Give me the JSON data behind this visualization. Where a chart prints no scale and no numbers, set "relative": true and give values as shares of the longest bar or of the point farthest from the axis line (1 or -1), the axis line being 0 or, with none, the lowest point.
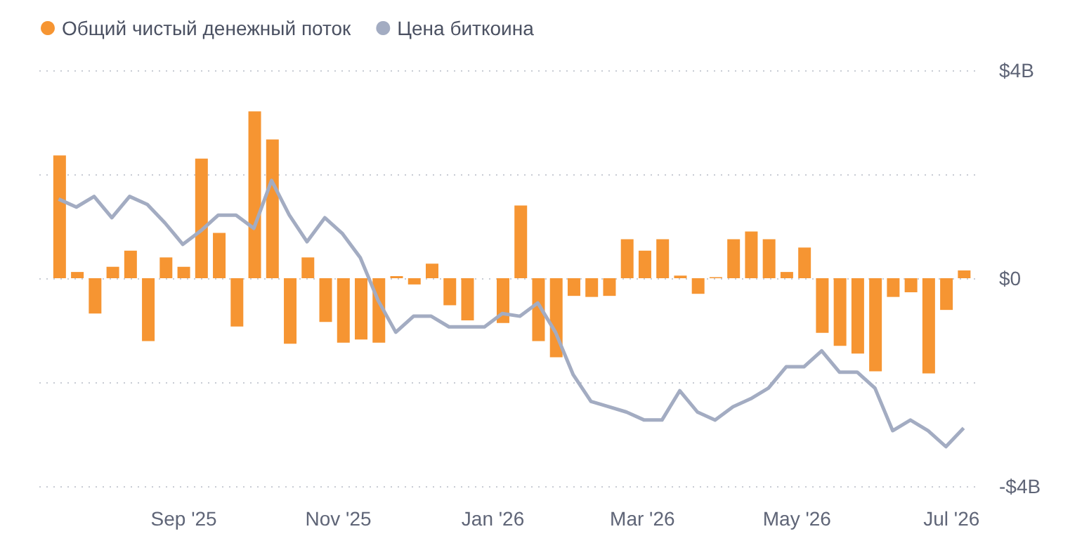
{
  "chart_data": [
    {
      "type": "bar",
      "x": [
        "2025-07-14",
        "2025-07-21",
        "2025-07-28",
        "2025-08-04",
        "2025-08-11",
        "2025-08-18",
        "2025-08-25",
        "2025-09-01",
        "2025-09-08",
        "2025-09-15",
        "2025-09-22",
        "2025-09-29",
        "2025-10-06",
        "2025-10-13",
        "2025-10-20",
        "2025-10-27",
        "2025-11-03",
        "2025-11-10",
        "2025-11-17",
        "2025-11-24",
        "2025-12-01",
        "2025-12-08",
        "2025-12-15",
        "2025-12-22",
        "2025-12-29",
        "2026-01-05",
        "2026-01-12",
        "2026-01-19",
        "2026-01-26",
        "2026-02-02",
        "2026-02-09",
        "2026-02-16",
        "2026-02-23",
        "2026-03-02",
        "2026-03-09",
        "2026-03-16",
        "2026-03-23",
        "2026-03-30",
        "2026-04-06",
        "2026-04-13",
        "2026-04-20",
        "2026-04-27",
        "2026-05-04",
        "2026-05-11",
        "2026-05-18",
        "2026-05-25",
        "2026-06-01",
        "2026-06-08",
        "2026-06-15",
        "2026-06-22",
        "2026-06-29",
        "2026-07-06"
      ],
      "series": [
        {
          "name": "Общий чистый денежный поток",
          "color": "#f69532",
          "values": [
            2.36,
            0.12,
            -0.68,
            0.22,
            0.53,
            -1.21,
            0.4,
            0.22,
            2.3,
            0.87,
            -0.93,
            3.21,
            2.67,
            -1.26,
            0.4,
            -0.84,
            -1.24,
            -1.18,
            -1.24,
            0.04,
            -0.12,
            0.28,
            -0.52,
            -0.81,
            0,
            -0.86,
            1.4,
            -1.21,
            -1.52,
            -0.34,
            -0.36,
            -0.34,
            0.75,
            0.53,
            0.75,
            0.05,
            -0.3,
            0.02,
            0.75,
            0.9,
            0.75,
            0.12,
            0.59,
            -1.05,
            -1.3,
            -1.45,
            -1.79,
            -0.36,
            -0.27,
            -1.83,
            -0.61,
            0.15
          ]
        }
      ],
      "xlim": [
        "2025-07-06",
        "2026-07-12"
      ],
      "xticks": [
        {
          "value": "2025-09-01",
          "label": "Sep '25"
        },
        {
          "value": "2025-11-01",
          "label": "Nov '25"
        },
        {
          "value": "2026-01-01",
          "label": "Jan '26"
        },
        {
          "value": "2026-03-01",
          "label": "Mar '26"
        },
        {
          "value": "2026-05-01",
          "label": "May '26"
        },
        {
          "value": "2026-07-01",
          "label": "Jul '26"
        }
      ],
      "ylim": [
        -4,
        4
      ],
      "yticks": [
        {
          "value": -4,
          "label": "-$4B"
        },
        {
          "value": -2,
          "label": null
        },
        {
          "value": 0,
          "label": "$0"
        },
        {
          "value": 2,
          "label": null
        },
        {
          "value": 4,
          "label": "$4B"
        }
      ],
      "grid": "y",
      "legend": "top left"
    },
    {
      "type": "line",
      "relative": true,
      "marker": "none",
      "categories": [
        null,
        null,
        null,
        null,
        null,
        null,
        null,
        null,
        null,
        null,
        null,
        null,
        null,
        null,
        null,
        null,
        null,
        null,
        null,
        null,
        null,
        null,
        null,
        null,
        null,
        null,
        null,
        null,
        null,
        null,
        null,
        null,
        null,
        null,
        null,
        null,
        null,
        null,
        null,
        null,
        null,
        null,
        null,
        null,
        null,
        null,
        null,
        null,
        null,
        null,
        null,
        null
      ],
      "series": [
        {
          "name": "Цена биткоина",
          "color": "#a3acc2",
          "values": [
            0.93,
            0.9,
            0.94,
            0.86,
            0.94,
            0.91,
            0.84,
            0.76,
            0.81,
            0.87,
            0.87,
            0.82,
            1,
            0.87,
            0.77,
            0.86,
            0.8,
            0.71,
            0.55,
            0.43,
            0.49,
            0.49,
            0.45,
            0.45,
            0.45,
            0.5,
            0.49,
            0.54,
            0.43,
            0.27,
            0.17,
            0.15,
            0.13,
            0.1,
            0.1,
            0.21,
            0.13,
            0.1,
            0.15,
            0.18,
            0.22,
            0.3,
            0.3,
            0.36,
            0.28,
            0.28,
            0.22,
            0.06,
            0.1,
            0.06,
            0,
            0.07
          ]
        }
      ],
      "legend": "top left"
    }
  ]
}
